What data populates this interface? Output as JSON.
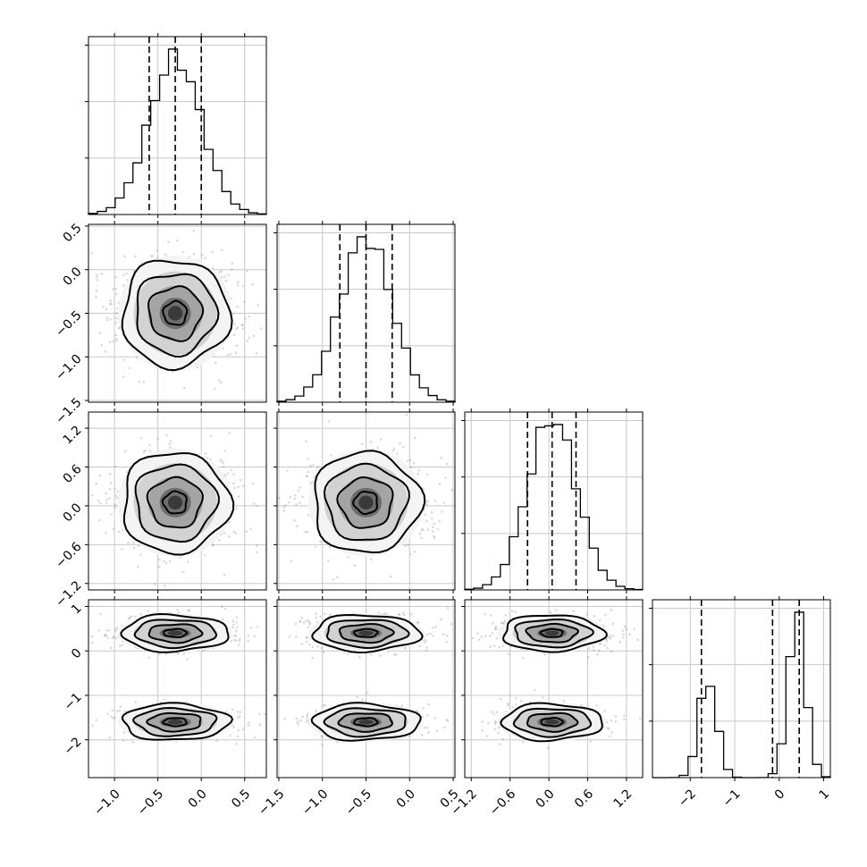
{
  "chart_data": {
    "type": "corner",
    "parameters": 4,
    "axis_labels": [],
    "quantiles": [
      0.16,
      0.5,
      0.84
    ],
    "parameter_ranges": [
      [
        -1.3,
        0.75
      ],
      [
        -1.52,
        0.52
      ],
      [
        -1.3,
        1.45
      ],
      [
        -2.85,
        1.15
      ]
    ],
    "tick_labels": {
      "p0": [
        "−1.0",
        "−0.5",
        "0.0",
        "0.5"
      ],
      "p1": [
        "−1.5",
        "−1.0",
        "−0.5",
        "0.0",
        "0.5"
      ],
      "p2": [
        "−1.2",
        "−0.6",
        "0.0",
        "0.6",
        "1.2"
      ],
      "p3": [
        "−2",
        "−1",
        "0",
        "1"
      ]
    },
    "tick_values": {
      "p0": [
        -1.0,
        -0.5,
        0.0,
        0.5
      ],
      "p1": [
        -1.5,
        -1.0,
        -0.5,
        0.0,
        0.5
      ],
      "p2": [
        -1.2,
        -0.6,
        0.0,
        0.6,
        1.2
      ],
      "p3": [
        -2,
        -1,
        0,
        1
      ]
    },
    "marginals": [
      {
        "parameter": 0,
        "quantile_values": [
          -0.6,
          -0.3,
          0.0
        ],
        "distribution": {
          "components": [
            {
              "mean": -0.3,
              "sd": 0.3,
              "weight": 1
            }
          ]
        }
      },
      {
        "parameter": 1,
        "quantile_values": [
          -0.8,
          -0.5,
          -0.2
        ],
        "distribution": {
          "components": [
            {
              "mean": -0.5,
              "sd": 0.3,
              "weight": 1
            }
          ]
        }
      },
      {
        "parameter": 2,
        "quantile_values": [
          -0.33,
          0.05,
          0.42
        ],
        "distribution": {
          "components": [
            {
              "mean": 0.05,
              "sd": 0.38,
              "weight": 1
            }
          ]
        }
      },
      {
        "parameter": 3,
        "quantile_values": [
          -1.75,
          -0.15,
          0.45
        ],
        "distribution": {
          "components": [
            {
              "mean": -1.6,
              "sd": 0.2,
              "weight": 0.38
            },
            {
              "mean": 0.4,
              "sd": 0.2,
              "weight": 0.62
            }
          ]
        }
      }
    ],
    "joint_panels": [
      {
        "x_param": 0,
        "y_param": 1
      },
      {
        "x_param": 0,
        "y_param": 2
      },
      {
        "x_param": 1,
        "y_param": 2
      },
      {
        "x_param": 0,
        "y_param": 3
      },
      {
        "x_param": 1,
        "y_param": 3
      },
      {
        "x_param": 2,
        "y_param": 3
      }
    ],
    "grid": true
  }
}
